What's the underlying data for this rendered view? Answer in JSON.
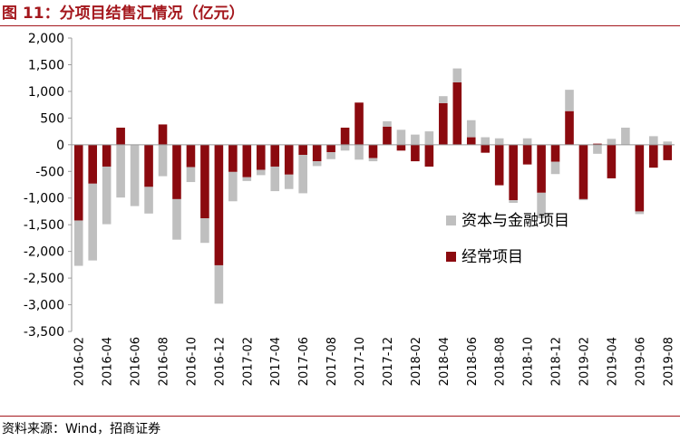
{
  "header": {
    "title": "图 11：分项目结售汇情况（亿元）"
  },
  "footer": {
    "source": "资料来源：Wind，招商证券"
  },
  "colors": {
    "accent": "#a4171d",
    "current_account": "#8b0a0f",
    "capital_financial": "#bfbfbf"
  },
  "chart_data": {
    "type": "bar",
    "stacked": true,
    "title": "分项目结售汇情况（亿元）",
    "xlabel": "",
    "ylabel": "",
    "ylim": [
      -3500,
      2000
    ],
    "yticks": [
      2000,
      1500,
      1000,
      500,
      0,
      -500,
      -1000,
      -1500,
      -2000,
      -2500,
      -3000,
      -3500
    ],
    "ytick_labels": [
      "2,000",
      "1,500",
      "1,000",
      "500",
      "0",
      "-500",
      "-1,000",
      "-1,500",
      "-2,000",
      "-2,500",
      "-3,000",
      "-3,500"
    ],
    "grid": false,
    "legend_position": "right-middle",
    "categories": [
      "2016-02",
      "2016-03",
      "2016-04",
      "2016-05",
      "2016-06",
      "2016-07",
      "2016-08",
      "2016-09",
      "2016-10",
      "2016-11",
      "2016-12",
      "2017-01",
      "2017-02",
      "2017-03",
      "2017-04",
      "2017-05",
      "2017-06",
      "2017-07",
      "2017-08",
      "2017-09",
      "2017-10",
      "2017-11",
      "2017-12",
      "2018-01",
      "2018-02",
      "2018-03",
      "2018-04",
      "2018-05",
      "2018-06",
      "2018-07",
      "2018-08",
      "2018-09",
      "2018-10",
      "2018-11",
      "2018-12",
      "2019-01",
      "2019-02",
      "2019-03",
      "2019-04",
      "2019-05",
      "2019-06",
      "2019-07",
      "2019-08"
    ],
    "tick_labels": [
      "2016-02",
      "2016-04",
      "2016-06",
      "2016-08",
      "2016-10",
      "2016-12",
      "2017-02",
      "2017-04",
      "2017-06",
      "2017-08",
      "2017-10",
      "2017-12",
      "2018-02",
      "2018-04",
      "2018-06",
      "2018-08",
      "2018-10",
      "2018-12",
      "2019-02",
      "2019-04",
      "2019-06",
      "2019-08"
    ],
    "series": [
      {
        "name": "资本与金融项目",
        "color": "#bfbfbf",
        "values": [
          -850,
          -1440,
          -1080,
          -990,
          -1150,
          -500,
          -590,
          -760,
          -280,
          -460,
          -720,
          -550,
          -70,
          -100,
          -460,
          -270,
          -720,
          -90,
          -130,
          -110,
          -280,
          -60,
          100,
          280,
          190,
          250,
          130,
          260,
          320,
          140,
          120,
          -50,
          120,
          -480,
          -230,
          400,
          -20,
          -170,
          110,
          320,
          -50,
          160,
          60
        ]
      },
      {
        "name": "经常项目",
        "color": "#8b0a0f",
        "values": [
          -1420,
          -730,
          -410,
          320,
          0,
          -790,
          380,
          -1020,
          -420,
          -1380,
          -2260,
          -510,
          -610,
          -470,
          -410,
          -560,
          -190,
          -310,
          -140,
          320,
          790,
          -250,
          340,
          -110,
          -310,
          -410,
          780,
          1170,
          140,
          -150,
          -760,
          -1040,
          -370,
          -900,
          -320,
          630,
          -1020,
          20,
          -630,
          0,
          -1250,
          -430,
          -290
        ]
      }
    ]
  }
}
